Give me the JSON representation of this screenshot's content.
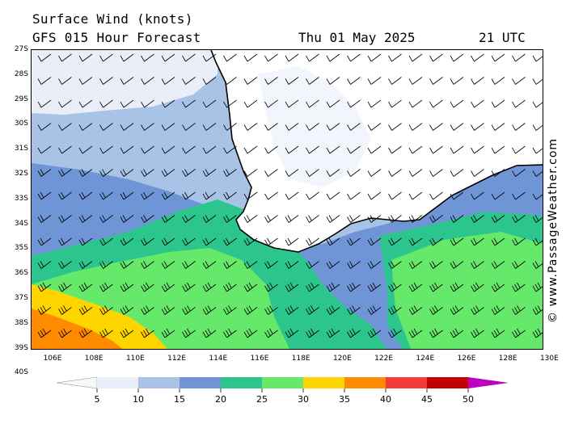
{
  "header": {
    "title": "Surface Wind (knots)",
    "forecast": "GFS 015 Hour Forecast",
    "date": "Thu 01 May 2025",
    "time": "21 UTC"
  },
  "credit": "© www.PassageWeather.com",
  "map": {
    "lat_labels": [
      "27S",
      "28S",
      "29S",
      "30S",
      "31S",
      "32S",
      "33S",
      "34S",
      "35S",
      "36S",
      "37S",
      "38S",
      "39S",
      "40S"
    ],
    "lon_labels": [
      "106E",
      "108E",
      "110E",
      "112E",
      "114E",
      "116E",
      "118E",
      "120E",
      "122E",
      "124E",
      "126E",
      "128E",
      "130E"
    ],
    "lat_range": [
      -40,
      -27
    ],
    "lon_range": [
      105,
      130
    ],
    "land_color": "#ffffff",
    "coastline_color": "#000000"
  },
  "legend": {
    "values": [
      "5",
      "10",
      "15",
      "20",
      "25",
      "30",
      "35",
      "40",
      "45",
      "50"
    ],
    "colors": [
      "#e9eef9",
      "#a9c3e6",
      "#6f95d6",
      "#2cc58e",
      "#66e86a",
      "#ffd500",
      "#ff8c00",
      "#f53b37",
      "#c40000",
      "#c000c0"
    ]
  },
  "colors": {
    "wind_5": "#e9eef9",
    "wind_10": "#a9c3e6",
    "wind_15": "#6f95d6",
    "wind_20": "#2cc58e",
    "wind_25": "#66e86a",
    "wind_30": "#ffd500",
    "wind_35": "#ff8c00"
  }
}
